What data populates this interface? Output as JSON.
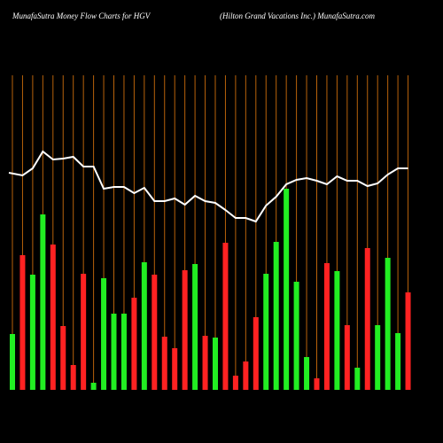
{
  "chart_data": {
    "type": "bar",
    "title": "MunafaSutra  Money Flow  Charts for HGV",
    "subtitle": "(Hilton  Grand Vacations Inc.) MunafaSutra.com",
    "values": [
      63,
      152,
      130,
      198,
      164,
      72,
      28,
      131,
      8,
      126,
      86,
      86,
      104,
      144,
      130,
      60,
      47,
      135,
      142,
      61,
      59,
      166,
      16,
      32,
      82,
      131,
      167,
      227,
      122,
      37,
      13,
      143,
      134,
      73,
      25,
      160,
      73,
      149,
      64,
      110
    ],
    "colors": [
      "#22ee22",
      "#ff2222",
      "#22ee22",
      "#22ee22",
      "#ff2222",
      "#ff2222",
      "#ff2222",
      "#ff2222",
      "#22ee22",
      "#22ee22",
      "#22ee22",
      "#22ee22",
      "#ff2222",
      "#22ee22",
      "#ff2222",
      "#ff2222",
      "#ff2222",
      "#ff2222",
      "#22ee22",
      "#ff2222",
      "#22ee22",
      "#ff2222",
      "#ff2222",
      "#ff2222",
      "#ff2222",
      "#22ee22",
      "#22ee22",
      "#22ee22",
      "#22ee22",
      "#22ee22",
      "#ff2222",
      "#ff2222",
      "#22ee22",
      "#ff2222",
      "#22ee22",
      "#ff2222",
      "#22ee22",
      "#22ee22",
      "#22ee22",
      "#ff2222"
    ],
    "line_values": [
      245,
      242,
      250,
      269,
      260,
      261,
      263,
      252,
      252,
      227,
      229,
      229,
      222,
      228,
      213,
      213,
      216,
      209,
      219,
      213,
      211,
      203,
      194,
      194,
      190,
      208,
      218,
      232,
      237,
      239,
      236,
      232,
      241,
      236,
      236,
      230,
      233,
      243,
      250,
      250
    ],
    "line_color": "#ffffff",
    "guide_color": "#b8620a"
  }
}
